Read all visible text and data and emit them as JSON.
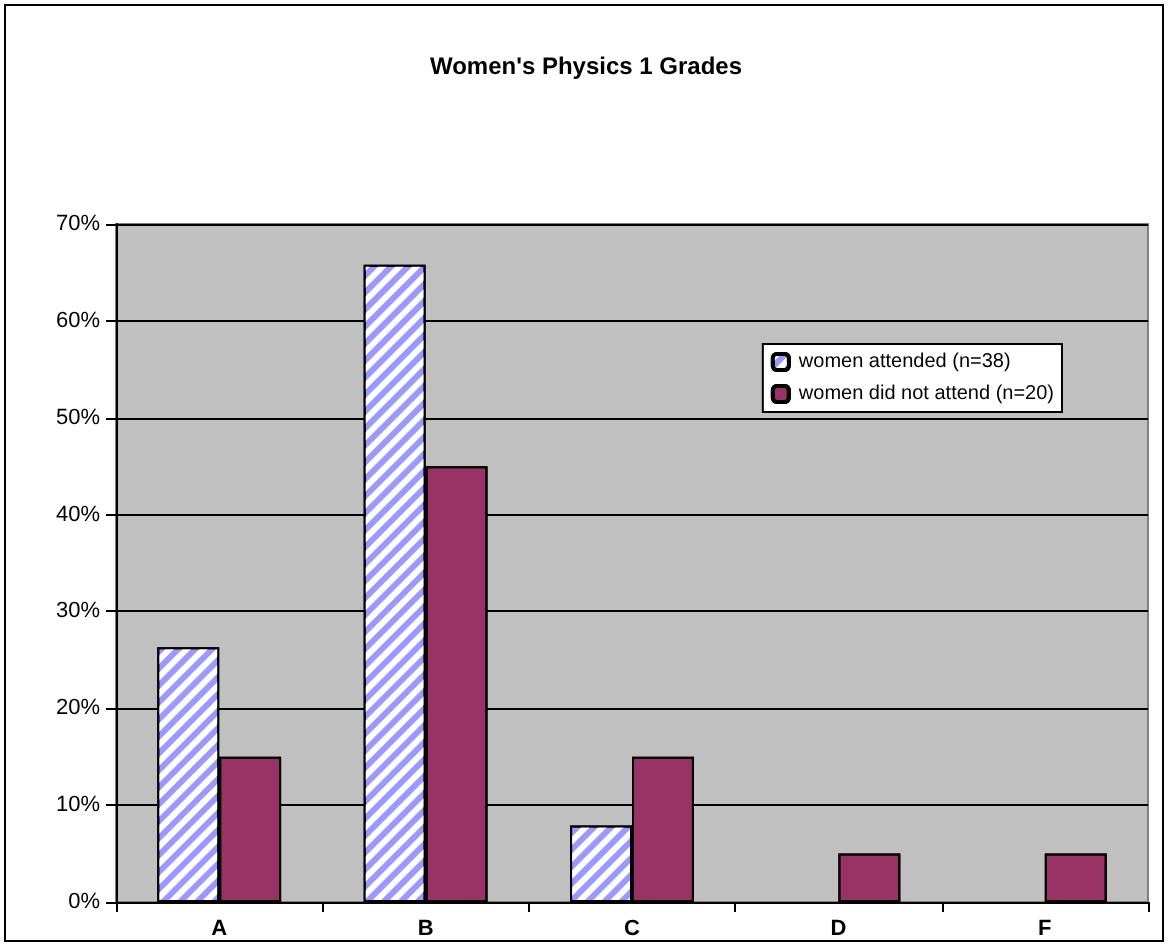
{
  "chart_data": {
    "type": "bar",
    "title": "Women's Physics 1 Grades",
    "categories": [
      "A",
      "B",
      "C",
      "D",
      "F"
    ],
    "series": [
      {
        "name": "women attended (n=38)",
        "color": "#9999ff",
        "values": [
          26.3,
          65.8,
          7.9,
          0,
          0
        ]
      },
      {
        "name": "women did not attend (n=20)",
        "color": "#993366",
        "values": [
          15,
          45,
          15,
          5,
          5
        ]
      }
    ],
    "ylim": [
      0,
      70
    ],
    "yticks": [
      {
        "value": 0,
        "label": "0%"
      },
      {
        "value": 10,
        "label": "10%"
      },
      {
        "value": 20,
        "label": "20%"
      },
      {
        "value": 30,
        "label": "30%"
      },
      {
        "value": 40,
        "label": "40%"
      },
      {
        "value": 50,
        "label": "50%"
      },
      {
        "value": 60,
        "label": "60%"
      },
      {
        "value": 70,
        "label": "70%"
      }
    ],
    "grid": "y",
    "legend": "right"
  }
}
